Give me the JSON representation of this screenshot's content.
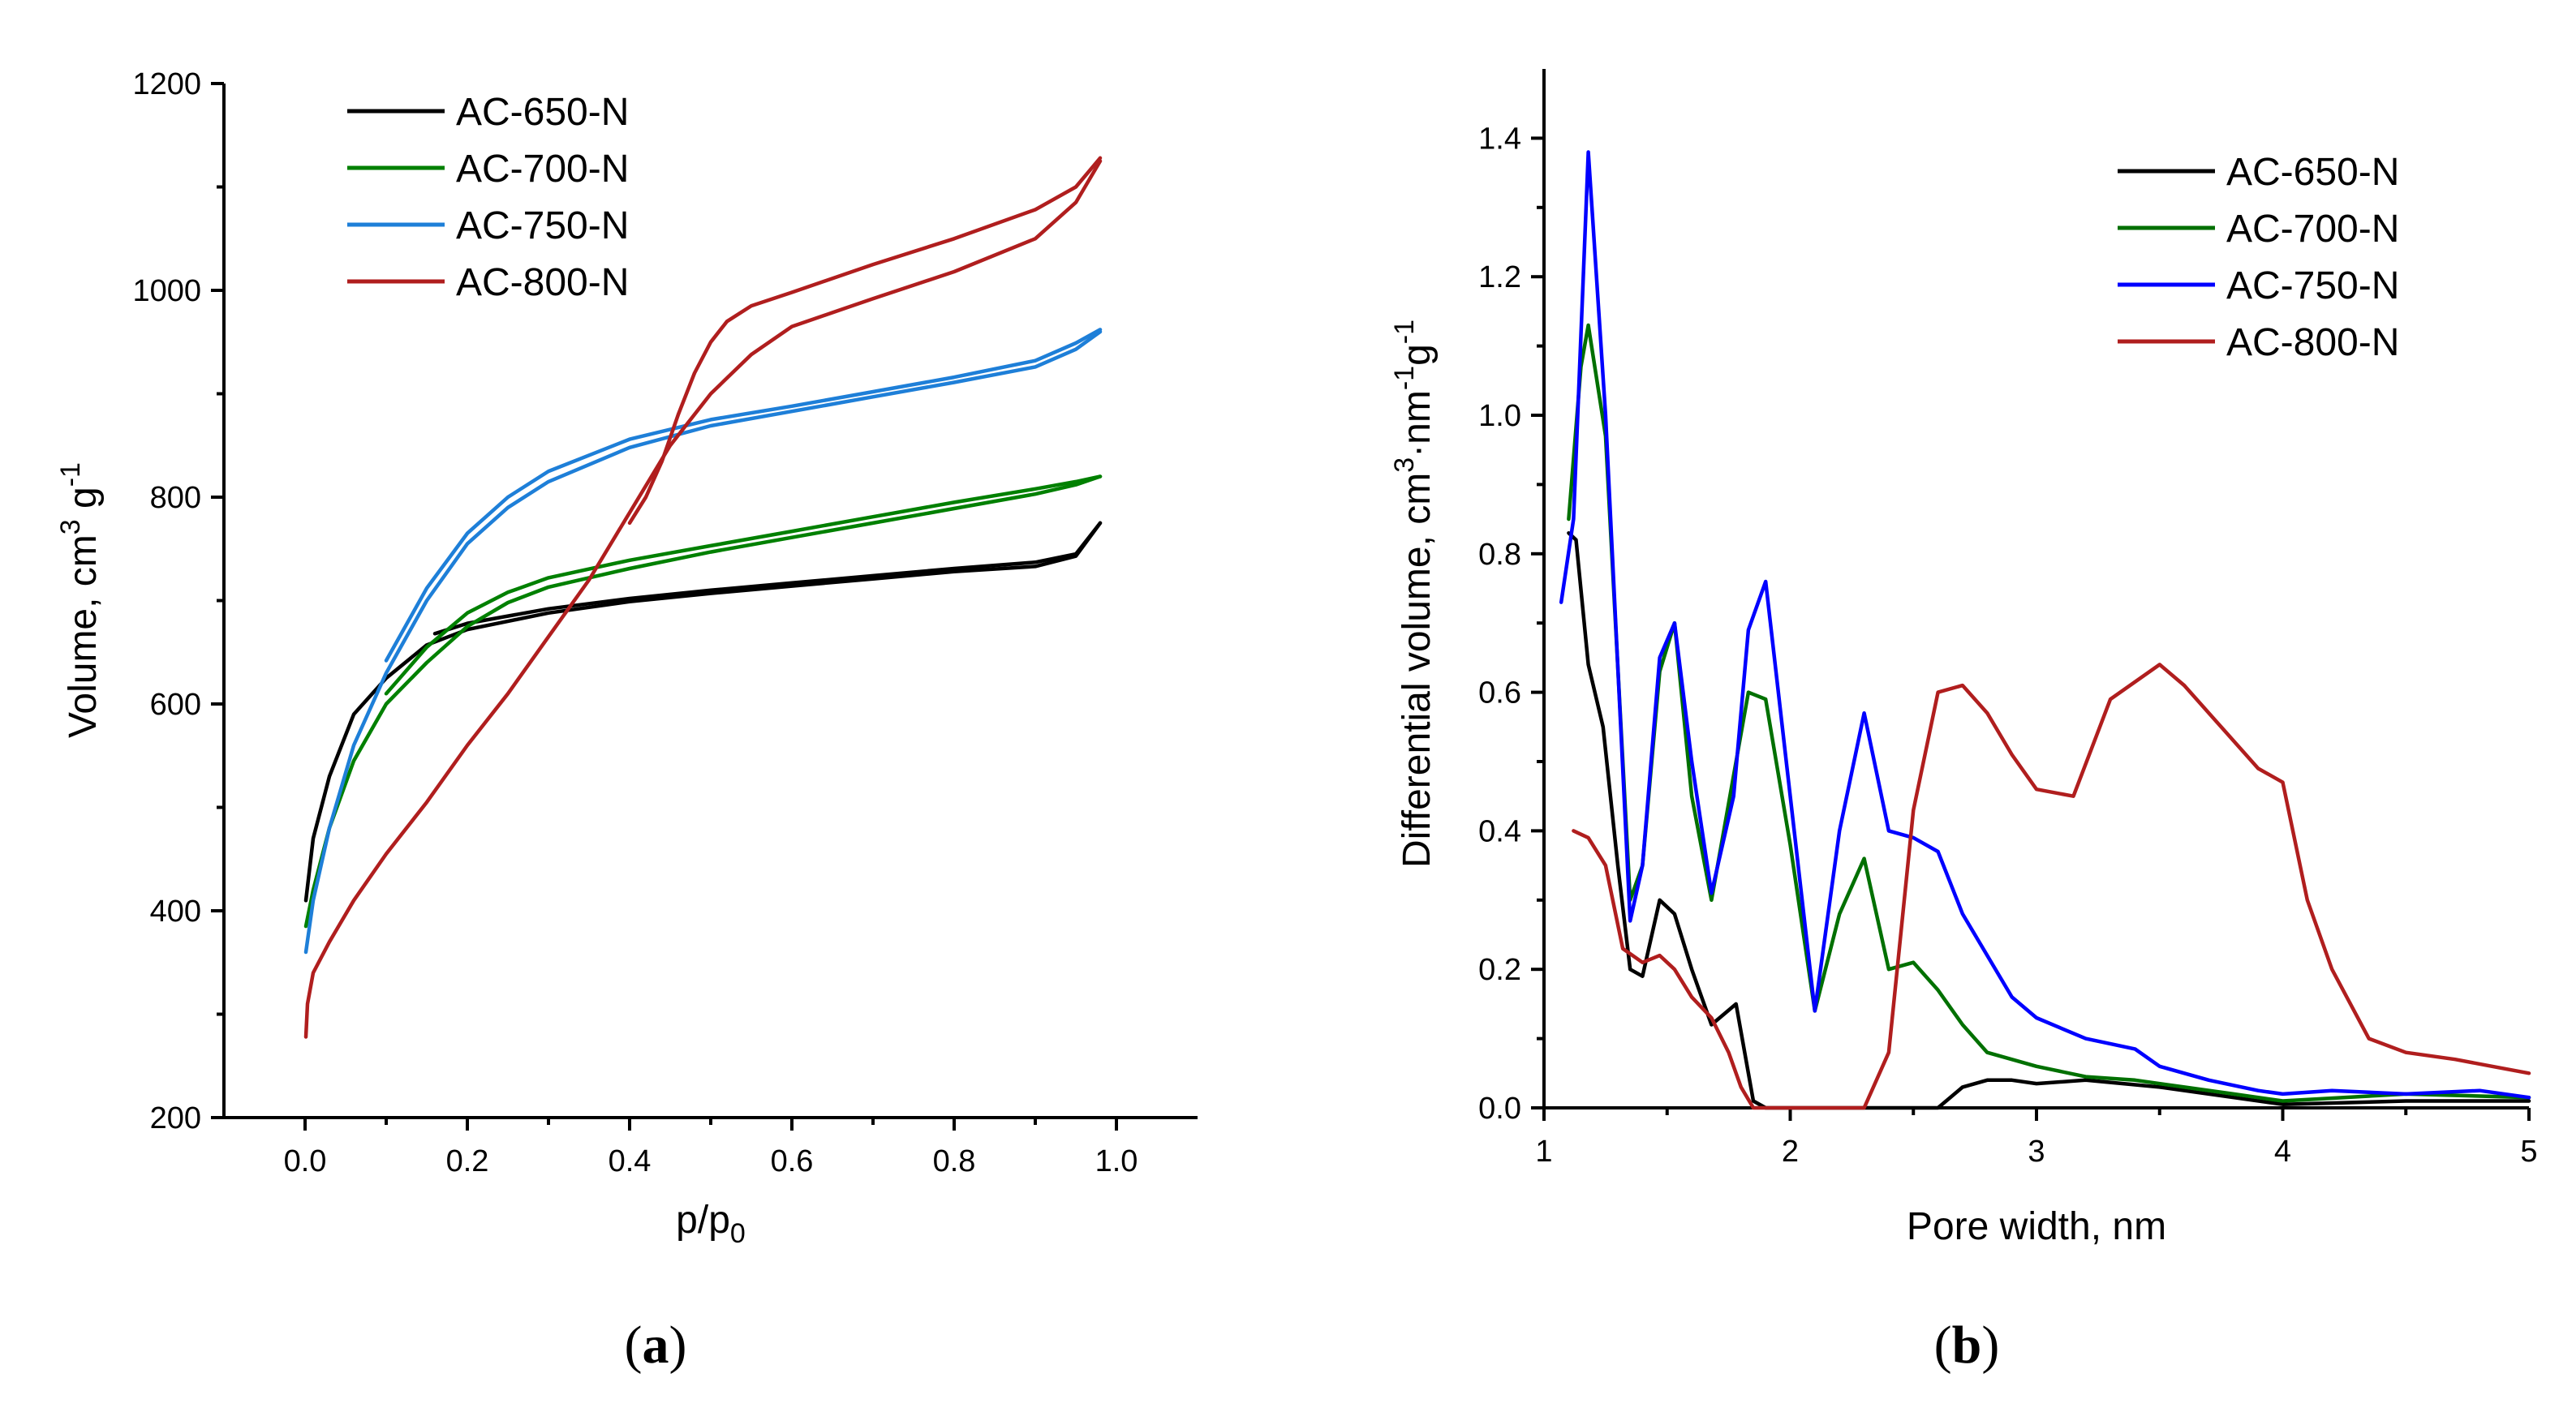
{
  "chart_data": [
    {
      "type": "line",
      "panel_label": "a",
      "xlabel": "p/p",
      "xlabel_sub": "0",
      "ylabel": "Volume, cm",
      "ylabel_sup1": "3",
      "ylabel_mid": " g",
      "ylabel_sup2": "-1",
      "xlim": [
        -0.1,
        1.1
      ],
      "ylim": [
        200,
        1200
      ],
      "xticks": [
        "0.0",
        "0.2",
        "0.4",
        "0.6",
        "0.8",
        "1.0"
      ],
      "yticks": [
        "200",
        "400",
        "600",
        "800",
        "1000",
        "1200"
      ],
      "legend_position": "top-left",
      "series": [
        {
          "name": "AC-650-N",
          "color": "#000000",
          "adsorption": [
            [
              0.001,
              410
            ],
            [
              0.01,
              470
            ],
            [
              0.03,
              530
            ],
            [
              0.06,
              590
            ],
            [
              0.1,
              625
            ],
            [
              0.15,
              657
            ],
            [
              0.2,
              672
            ],
            [
              0.3,
              688
            ],
            [
              0.4,
              699
            ],
            [
              0.5,
              707
            ],
            [
              0.6,
              714
            ],
            [
              0.7,
              721
            ],
            [
              0.8,
              728
            ],
            [
              0.9,
              733
            ],
            [
              0.95,
              743
            ],
            [
              0.98,
              775
            ]
          ],
          "desorption": [
            [
              0.98,
              775
            ],
            [
              0.95,
              745
            ],
            [
              0.9,
              737
            ],
            [
              0.8,
              731
            ],
            [
              0.7,
              724
            ],
            [
              0.6,
              717
            ],
            [
              0.5,
              710
            ],
            [
              0.4,
              702
            ],
            [
              0.35,
              697
            ],
            [
              0.3,
              692
            ],
            [
              0.25,
              685
            ],
            [
              0.2,
              678
            ],
            [
              0.16,
              668
            ]
          ]
        },
        {
          "name": "AC-700-N",
          "color": "#008000",
          "adsorption": [
            [
              0.001,
              385
            ],
            [
              0.01,
              420
            ],
            [
              0.03,
              480
            ],
            [
              0.06,
              545
            ],
            [
              0.1,
              600
            ],
            [
              0.15,
              640
            ],
            [
              0.2,
              675
            ],
            [
              0.25,
              698
            ],
            [
              0.3,
              713
            ],
            [
              0.4,
              731
            ],
            [
              0.5,
              747
            ],
            [
              0.6,
              761
            ],
            [
              0.7,
              775
            ],
            [
              0.8,
              789
            ],
            [
              0.9,
              803
            ],
            [
              0.95,
              812
            ],
            [
              0.98,
              820
            ]
          ],
          "desorption": [
            [
              0.98,
              820
            ],
            [
              0.95,
              815
            ],
            [
              0.9,
              808
            ],
            [
              0.8,
              795
            ],
            [
              0.7,
              781
            ],
            [
              0.6,
              767
            ],
            [
              0.5,
              753
            ],
            [
              0.4,
              739
            ],
            [
              0.3,
              722
            ],
            [
              0.25,
              708
            ],
            [
              0.2,
              688
            ],
            [
              0.15,
              655
            ],
            [
              0.1,
              610
            ]
          ]
        },
        {
          "name": "AC-750-N",
          "color": "#1E7FD8",
          "adsorption": [
            [
              0.001,
              360
            ],
            [
              0.01,
              410
            ],
            [
              0.03,
              480
            ],
            [
              0.06,
              560
            ],
            [
              0.1,
              630
            ],
            [
              0.15,
              700
            ],
            [
              0.2,
              755
            ],
            [
              0.25,
              790
            ],
            [
              0.3,
              815
            ],
            [
              0.4,
              848
            ],
            [
              0.5,
              869
            ],
            [
              0.6,
              883
            ],
            [
              0.7,
              897
            ],
            [
              0.8,
              911
            ],
            [
              0.9,
              926
            ],
            [
              0.95,
              943
            ],
            [
              0.98,
              960
            ]
          ],
          "desorption": [
            [
              0.98,
              962
            ],
            [
              0.95,
              949
            ],
            [
              0.9,
              932
            ],
            [
              0.8,
              916
            ],
            [
              0.7,
              902
            ],
            [
              0.6,
              888
            ],
            [
              0.5,
              875
            ],
            [
              0.4,
              856
            ],
            [
              0.3,
              825
            ],
            [
              0.25,
              800
            ],
            [
              0.2,
              765
            ],
            [
              0.15,
              712
            ],
            [
              0.1,
              642
            ]
          ]
        },
        {
          "name": "AC-800-N",
          "color": "#B01E1E",
          "adsorption": [
            [
              0.001,
              278
            ],
            [
              0.003,
              310
            ],
            [
              0.01,
              340
            ],
            [
              0.03,
              370
            ],
            [
              0.06,
              410
            ],
            [
              0.1,
              455
            ],
            [
              0.15,
              505
            ],
            [
              0.2,
              560
            ],
            [
              0.25,
              610
            ],
            [
              0.3,
              665
            ],
            [
              0.35,
              720
            ],
            [
              0.4,
              785
            ],
            [
              0.45,
              850
            ],
            [
              0.5,
              900
            ],
            [
              0.55,
              938
            ],
            [
              0.6,
              965
            ],
            [
              0.7,
              992
            ],
            [
              0.8,
              1018
            ],
            [
              0.9,
              1050
            ],
            [
              0.95,
              1085
            ],
            [
              0.98,
              1125
            ]
          ],
          "desorption": [
            [
              0.98,
              1128
            ],
            [
              0.95,
              1100
            ],
            [
              0.9,
              1078
            ],
            [
              0.8,
              1050
            ],
            [
              0.7,
              1025
            ],
            [
              0.6,
              998
            ],
            [
              0.55,
              985
            ],
            [
              0.52,
              970
            ],
            [
              0.5,
              950
            ],
            [
              0.48,
              920
            ],
            [
              0.46,
              880
            ],
            [
              0.44,
              835
            ],
            [
              0.42,
              800
            ],
            [
              0.4,
              775
            ]
          ]
        }
      ]
    },
    {
      "type": "line",
      "panel_label": "b",
      "xlabel": "Pore width, nm",
      "ylabel": "Differential volume, cm",
      "ylabel_sup1": "3",
      "ylabel_mid": "·nm",
      "ylabel_sup2": "-1",
      "ylabel_mid2": "g",
      "ylabel_sup3": "-1",
      "xlim": [
        1,
        5
      ],
      "ylim": [
        0,
        1.5
      ],
      "xticks": [
        "1",
        "2",
        "3",
        "4",
        "5"
      ],
      "yticks": [
        "0.0",
        "0.2",
        "0.4",
        "0.6",
        "0.8",
        "1.0",
        "1.2",
        "1.4"
      ],
      "legend_position": "top-right",
      "series": [
        {
          "name": "AC-650-N",
          "color": "#000000",
          "points": [
            [
              1.1,
              0.83
            ],
            [
              1.13,
              0.82
            ],
            [
              1.18,
              0.64
            ],
            [
              1.24,
              0.55
            ],
            [
              1.3,
              0.35
            ],
            [
              1.35,
              0.2
            ],
            [
              1.4,
              0.19
            ],
            [
              1.47,
              0.3
            ],
            [
              1.53,
              0.28
            ],
            [
              1.6,
              0.2
            ],
            [
              1.68,
              0.12
            ],
            [
              1.78,
              0.15
            ],
            [
              1.85,
              0.01
            ],
            [
              1.9,
              0.0
            ],
            [
              2.0,
              0.0
            ],
            [
              2.3,
              0.0
            ],
            [
              2.6,
              0.0
            ],
            [
              2.7,
              0.03
            ],
            [
              2.8,
              0.04
            ],
            [
              2.9,
              0.04
            ],
            [
              3.0,
              0.035
            ],
            [
              3.2,
              0.04
            ],
            [
              3.5,
              0.03
            ],
            [
              3.8,
              0.015
            ],
            [
              4.0,
              0.005
            ],
            [
              4.5,
              0.01
            ],
            [
              5.0,
              0.01
            ]
          ]
        },
        {
          "name": "AC-700-N",
          "color": "#007000",
          "points": [
            [
              1.1,
              0.85
            ],
            [
              1.15,
              1.07
            ],
            [
              1.18,
              1.13
            ],
            [
              1.25,
              0.97
            ],
            [
              1.35,
              0.3
            ],
            [
              1.4,
              0.35
            ],
            [
              1.47,
              0.63
            ],
            [
              1.53,
              0.7
            ],
            [
              1.6,
              0.45
            ],
            [
              1.68,
              0.3
            ],
            [
              1.77,
              0.48
            ],
            [
              1.83,
              0.6
            ],
            [
              1.9,
              0.59
            ],
            [
              2.0,
              0.38
            ],
            [
              2.1,
              0.14
            ],
            [
              2.2,
              0.28
            ],
            [
              2.3,
              0.36
            ],
            [
              2.4,
              0.2
            ],
            [
              2.5,
              0.21
            ],
            [
              2.6,
              0.17
            ],
            [
              2.7,
              0.12
            ],
            [
              2.8,
              0.08
            ],
            [
              3.0,
              0.06
            ],
            [
              3.2,
              0.045
            ],
            [
              3.4,
              0.04
            ],
            [
              3.6,
              0.03
            ],
            [
              3.8,
              0.02
            ],
            [
              4.0,
              0.01
            ],
            [
              4.5,
              0.02
            ],
            [
              5.0,
              0.015
            ]
          ]
        },
        {
          "name": "AC-750-N",
          "color": "#0000FF",
          "points": [
            [
              1.07,
              0.73
            ],
            [
              1.12,
              0.85
            ],
            [
              1.18,
              1.38
            ],
            [
              1.25,
              1.0
            ],
            [
              1.35,
              0.27
            ],
            [
              1.4,
              0.35
            ],
            [
              1.47,
              0.65
            ],
            [
              1.53,
              0.7
            ],
            [
              1.6,
              0.5
            ],
            [
              1.68,
              0.31
            ],
            [
              1.77,
              0.45
            ],
            [
              1.83,
              0.69
            ],
            [
              1.9,
              0.76
            ],
            [
              2.0,
              0.45
            ],
            [
              2.1,
              0.14
            ],
            [
              2.2,
              0.4
            ],
            [
              2.3,
              0.57
            ],
            [
              2.4,
              0.4
            ],
            [
              2.5,
              0.39
            ],
            [
              2.6,
              0.37
            ],
            [
              2.7,
              0.28
            ],
            [
              2.8,
              0.22
            ],
            [
              2.9,
              0.16
            ],
            [
              3.0,
              0.13
            ],
            [
              3.2,
              0.1
            ],
            [
              3.4,
              0.085
            ],
            [
              3.5,
              0.06
            ],
            [
              3.7,
              0.04
            ],
            [
              3.9,
              0.025
            ],
            [
              4.0,
              0.02
            ],
            [
              4.2,
              0.025
            ],
            [
              4.5,
              0.02
            ],
            [
              4.8,
              0.025
            ],
            [
              5.0,
              0.015
            ]
          ]
        },
        {
          "name": "AC-800-N",
          "color": "#B01E1E",
          "points": [
            [
              1.12,
              0.4
            ],
            [
              1.18,
              0.39
            ],
            [
              1.25,
              0.35
            ],
            [
              1.32,
              0.23
            ],
            [
              1.4,
              0.21
            ],
            [
              1.47,
              0.22
            ],
            [
              1.53,
              0.2
            ],
            [
              1.6,
              0.16
            ],
            [
              1.68,
              0.13
            ],
            [
              1.75,
              0.08
            ],
            [
              1.8,
              0.03
            ],
            [
              1.85,
              0.0
            ],
            [
              1.9,
              0.0
            ],
            [
              2.0,
              0.0
            ],
            [
              2.2,
              0.0
            ],
            [
              2.3,
              0.0
            ],
            [
              2.4,
              0.08
            ],
            [
              2.5,
              0.43
            ],
            [
              2.6,
              0.6
            ],
            [
              2.7,
              0.61
            ],
            [
              2.8,
              0.57
            ],
            [
              2.9,
              0.51
            ],
            [
              3.0,
              0.46
            ],
            [
              3.15,
              0.45
            ],
            [
              3.3,
              0.59
            ],
            [
              3.5,
              0.64
            ],
            [
              3.6,
              0.61
            ],
            [
              3.75,
              0.55
            ],
            [
              3.9,
              0.49
            ],
            [
              4.0,
              0.47
            ],
            [
              4.1,
              0.3
            ],
            [
              4.2,
              0.2
            ],
            [
              4.35,
              0.1
            ],
            [
              4.5,
              0.08
            ],
            [
              4.7,
              0.07
            ],
            [
              4.85,
              0.06
            ],
            [
              5.0,
              0.05
            ]
          ]
        }
      ]
    }
  ]
}
